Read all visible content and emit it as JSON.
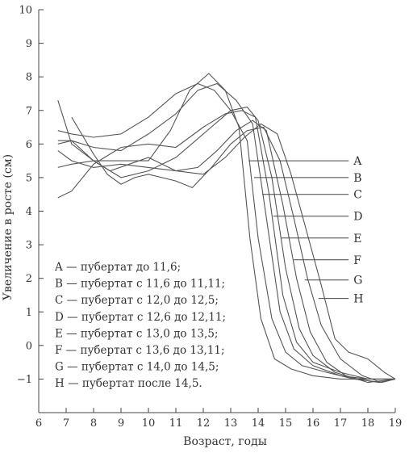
{
  "chart_data": {
    "type": "line",
    "xlabel": "Возраст, годы",
    "ylabel": "Увеличение в росте (см)",
    "xlim": [
      6,
      19
    ],
    "ylim": [
      -2,
      10
    ],
    "xticks": [
      6,
      7,
      8,
      9,
      10,
      11,
      12,
      13,
      14,
      15,
      16,
      17,
      18,
      19
    ],
    "yticks": [
      -1,
      0,
      1,
      2,
      3,
      4,
      5,
      6,
      7,
      8,
      9,
      10
    ],
    "grid": false,
    "series": [
      {
        "name": "A",
        "x": [
          6.7,
          7.2,
          8.0,
          9.0,
          10.0,
          10.8,
          11.5,
          12.2,
          12.8,
          13.3,
          13.7,
          14.1,
          14.6,
          15.2,
          16.0,
          17.0,
          18.0,
          19.0
        ],
        "y": [
          7.3,
          6.0,
          5.5,
          5.5,
          5.5,
          6.4,
          7.6,
          8.1,
          7.6,
          6.5,
          3.2,
          0.8,
          -0.4,
          -0.7,
          -0.9,
          -1.0,
          -1.0,
          -1.0
        ]
      },
      {
        "name": "B",
        "x": [
          6.7,
          7.2,
          8.0,
          9.0,
          10.0,
          11.0,
          11.8,
          12.4,
          13.0,
          13.6,
          14.0,
          14.5,
          15.0,
          15.6,
          16.5,
          17.5,
          18.5,
          19.0
        ],
        "y": [
          6.4,
          6.3,
          6.2,
          6.3,
          6.8,
          7.5,
          7.8,
          7.6,
          7.0,
          6.1,
          3.2,
          0.8,
          -0.2,
          -0.6,
          -0.8,
          -1.0,
          -1.1,
          -1.0
        ]
      },
      {
        "name": "C",
        "x": [
          6.7,
          7.2,
          8.0,
          9.0,
          10.0,
          11.0,
          11.8,
          12.5,
          13.2,
          13.8,
          14.3,
          14.8,
          15.3,
          16.0,
          17.0,
          18.0,
          19.0
        ],
        "y": [
          6.1,
          6.1,
          5.9,
          5.8,
          6.3,
          6.9,
          7.6,
          7.8,
          7.3,
          6.6,
          3.8,
          1.0,
          -0.1,
          -0.6,
          -0.9,
          -1.0,
          -1.0
        ]
      },
      {
        "name": "D",
        "x": [
          6.7,
          7.2,
          8.0,
          9.0,
          10.0,
          11.0,
          12.0,
          12.8,
          13.4,
          13.9,
          14.4,
          14.9,
          15.4,
          16.0,
          17.0,
          18.0,
          19.0
        ],
        "y": [
          4.4,
          4.6,
          5.4,
          5.9,
          6.0,
          5.9,
          6.5,
          6.9,
          7.0,
          6.8,
          4.5,
          1.5,
          0.1,
          -0.5,
          -0.8,
          -1.0,
          -1.0
        ]
      },
      {
        "name": "E",
        "x": [
          6.7,
          7.2,
          8.0,
          9.0,
          10.0,
          11.0,
          12.0,
          13.0,
          13.6,
          14.0,
          14.5,
          15.0,
          15.5,
          16.0,
          16.8,
          17.6,
          18.4,
          19.0
        ],
        "y": [
          6.0,
          6.1,
          5.5,
          5.0,
          5.2,
          5.6,
          6.3,
          7.0,
          7.1,
          6.7,
          5.0,
          2.3,
          0.5,
          -0.3,
          -0.8,
          -1.0,
          -1.1,
          -1.0
        ]
      },
      {
        "name": "F",
        "x": [
          6.7,
          7.2,
          8.0,
          9.0,
          10.0,
          11.0,
          11.8,
          12.5,
          13.2,
          13.8,
          14.3,
          14.9,
          15.4,
          15.9,
          16.5,
          17.2,
          18.0,
          19.0
        ],
        "y": [
          5.8,
          5.5,
          5.3,
          5.4,
          5.3,
          5.2,
          5.3,
          5.8,
          6.4,
          6.7,
          6.4,
          4.2,
          2.0,
          0.4,
          -0.5,
          -0.9,
          -1.1,
          -1.0
        ]
      },
      {
        "name": "G",
        "x": [
          7.2,
          8.0,
          8.5,
          9.0,
          9.5,
          10.0,
          11.0,
          11.6,
          12.3,
          13.0,
          13.6,
          14.2,
          14.8,
          15.3,
          15.8,
          16.3,
          17.0,
          17.8,
          18.5,
          19.0
        ],
        "y": [
          6.8,
          5.7,
          5.1,
          4.8,
          5.0,
          5.1,
          4.9,
          4.7,
          5.3,
          6.0,
          6.4,
          6.5,
          5.5,
          3.8,
          2.0,
          0.6,
          -0.4,
          -0.9,
          -1.1,
          -1.0
        ]
      },
      {
        "name": "H",
        "x": [
          6.7,
          7.2,
          8.0,
          8.6,
          9.3,
          10.0,
          11.0,
          12.0,
          12.8,
          13.5,
          14.1,
          14.7,
          15.2,
          15.8,
          16.3,
          16.8,
          17.3,
          18.0,
          18.6,
          19.0
        ],
        "y": [
          5.3,
          5.4,
          5.5,
          5.2,
          5.4,
          5.6,
          5.2,
          5.1,
          5.6,
          6.2,
          6.6,
          6.3,
          5.1,
          3.3,
          1.8,
          0.2,
          -0.2,
          -0.4,
          -0.8,
          -1.0
        ]
      }
    ],
    "tags": [
      {
        "name": "A",
        "x0": 13.65,
        "x1": 17.3,
        "y": 5.5
      },
      {
        "name": "B",
        "x0": 13.85,
        "x1": 17.3,
        "y": 5.0
      },
      {
        "name": "C",
        "x0": 14.15,
        "x1": 17.3,
        "y": 4.5
      },
      {
        "name": "D",
        "x0": 14.55,
        "x1": 17.3,
        "y": 3.85
      },
      {
        "name": "E",
        "x0": 14.85,
        "x1": 17.3,
        "y": 3.2
      },
      {
        "name": "F",
        "x0": 15.3,
        "x1": 17.3,
        "y": 2.55
      },
      {
        "name": "G",
        "x0": 15.7,
        "x1": 17.3,
        "y": 1.95
      },
      {
        "name": "H",
        "x0": 16.2,
        "x1": 17.3,
        "y": 1.4
      }
    ],
    "legend": [
      "A — пубертат до 11,6;",
      "B — пубертат с 11,6 до 11,11;",
      "C — пубертат с 12,0 до 12,5;",
      "D — пубертат с 12,6 до 12,11;",
      "E — пубертат с 13,0 до 13,5;",
      "F — пубертат с 13,6 до 13,11;",
      "G — пубертат с 14,0 до 14,5;",
      "H — пубертат после 14,5."
    ]
  }
}
